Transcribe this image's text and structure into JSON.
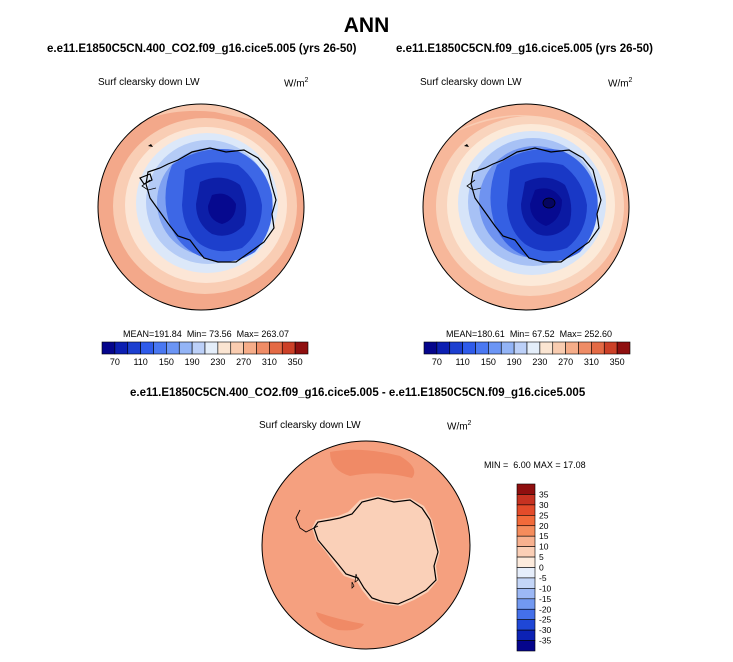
{
  "page_title": "ANN",
  "chart_data": [
    {
      "type": "heatmap",
      "projection": "polar-stereographic (south pole)",
      "title": "e.e11.E1850C5CN.400_CO2.f09_g16.cice5.005 (yrs 26-50)",
      "variable": "Surf clearsky down LW",
      "units": "W/m",
      "units_exp": "2",
      "stats": {
        "mean_label": "MEAN=",
        "mean": "191.84",
        "min_label": "Min=",
        "min": "73.56",
        "max_label": "Max=",
        "max": "263.07"
      },
      "colorbar": {
        "orientation": "horizontal",
        "tick_labels": [
          "70",
          "110",
          "150",
          "190",
          "230",
          "270",
          "310",
          "350"
        ],
        "levels": [
          70,
          90,
          110,
          130,
          150,
          170,
          190,
          210,
          230,
          250,
          270,
          290,
          310,
          330,
          350
        ],
        "colors": [
          "#05058c",
          "#0c1fb2",
          "#1c3fd0",
          "#2f5bea",
          "#4a78f2",
          "#6b95f5",
          "#93b4f6",
          "#bcd0f8",
          "#e4eefa",
          "#fbe5d2",
          "#f9ccb0",
          "#f6ad89",
          "#ef8c66",
          "#e46a45",
          "#cc4027",
          "#8f0f0f"
        ]
      }
    },
    {
      "type": "heatmap",
      "projection": "polar-stereographic (south pole)",
      "title": "e.e11.E1850C5CN.f09_g16.cice5.005 (yrs 26-50)",
      "variable": "Surf clearsky down LW",
      "units": "W/m",
      "units_exp": "2",
      "stats": {
        "mean_label": "MEAN=",
        "mean": "180.61",
        "min_label": "Min=",
        "min": "67.52",
        "max_label": "Max=",
        "max": "252.60"
      },
      "colorbar": {
        "orientation": "horizontal",
        "tick_labels": [
          "70",
          "110",
          "150",
          "190",
          "230",
          "270",
          "310",
          "350"
        ],
        "levels": [
          70,
          90,
          110,
          130,
          150,
          170,
          190,
          210,
          230,
          250,
          270,
          290,
          310,
          330,
          350
        ],
        "colors": [
          "#05058c",
          "#0c1fb2",
          "#1c3fd0",
          "#2f5bea",
          "#4a78f2",
          "#6b95f5",
          "#93b4f6",
          "#bcd0f8",
          "#e4eefa",
          "#fbe5d2",
          "#f9ccb0",
          "#f6ad89",
          "#ef8c66",
          "#e46a45",
          "#cc4027",
          "#8f0f0f"
        ]
      }
    },
    {
      "type": "heatmap",
      "projection": "polar-stereographic (south pole)",
      "title": "e.e11.E1850C5CN.400_CO2.f09_g16.cice5.005 - e.e11.E1850C5CN.f09_g16.cice5.005",
      "variable": "Surf clearsky down LW",
      "units": "W/m",
      "units_exp": "2",
      "stats": {
        "min_label": "MIN =",
        "min": "6.00",
        "max_label": "MAX =",
        "max": "17.08"
      },
      "colorbar": {
        "orientation": "vertical",
        "tick_labels": [
          "35",
          "30",
          "25",
          "20",
          "15",
          "10",
          "5",
          "0",
          "-5",
          "-10",
          "-15",
          "-20",
          "-25",
          "-30",
          "-35"
        ],
        "colors": [
          "#8f0f0f",
          "#c63221",
          "#e34b2a",
          "#f26a3a",
          "#f58c5c",
          "#f8b18f",
          "#fbcfb6",
          "#fdebdd",
          "#e6eefb",
          "#c4d6f8",
          "#9cb8f5",
          "#7299f1",
          "#4470ea",
          "#1f47d6",
          "#0c22b4",
          "#05058c"
        ]
      }
    }
  ]
}
